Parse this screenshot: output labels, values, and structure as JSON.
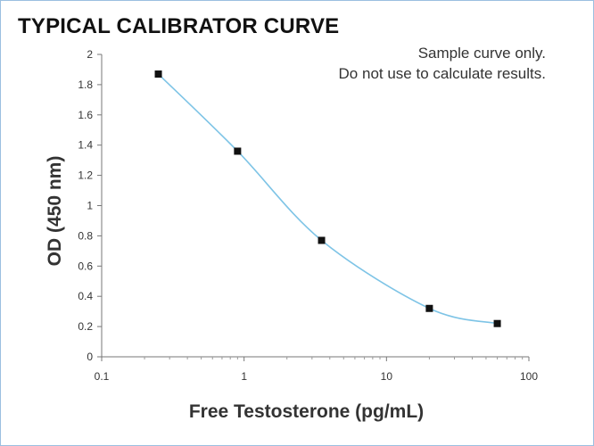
{
  "chart_data": {
    "type": "line",
    "title": "TYPICAL CALIBRATOR CURVE",
    "note_lines": [
      "Sample curve only.",
      "Do not use to calculate results."
    ],
    "xlabel": "Free Testosterone (pg/mL)",
    "ylabel": "OD (450 nm)",
    "x_scale": "log",
    "xlim": [
      0.1,
      100
    ],
    "ylim": [
      0,
      2
    ],
    "x_ticks": [
      0.1,
      1,
      10,
      100
    ],
    "x_tick_labels": [
      "0.1",
      "1",
      "10",
      "100"
    ],
    "y_ticks": [
      0,
      0.2,
      0.4,
      0.6,
      0.8,
      1,
      1.2,
      1.4,
      1.6,
      1.8,
      2
    ],
    "y_tick_labels": [
      "0",
      "0.2",
      "0.4",
      "0.6",
      "0.8",
      "1",
      "1.2",
      "1.4",
      "1.6",
      "1.8",
      "2"
    ],
    "grid": false,
    "series": [
      {
        "x": [
          0.25,
          0.9,
          3.5,
          20,
          60
        ],
        "y": [
          1.87,
          1.36,
          0.77,
          0.32,
          0.22
        ],
        "line_color": "#7ec4e6",
        "marker_color": "#111111",
        "marker": "square"
      }
    ]
  }
}
